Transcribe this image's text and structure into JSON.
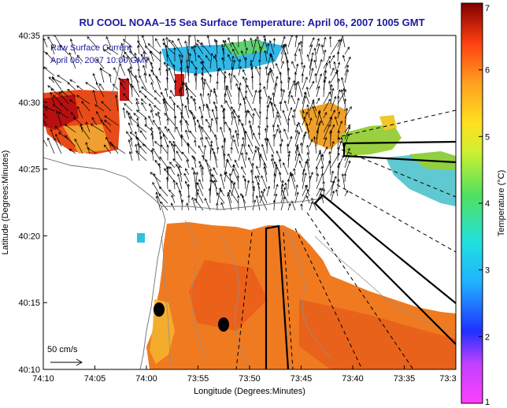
{
  "chart_data": {
    "type": "heatmap",
    "title": "RU COOL  NOAA–15  Sea Surface Temperature:  April 06, 2007 1005 GMT",
    "xlabel": "Longitude (Degrees:Minutes)",
    "ylabel": "Latitude (Degrees:Minutes)",
    "colorbar_label": "Temperature (°C)",
    "x_ticks": [
      "74:10",
      "74:05",
      "74:00",
      "73:55",
      "73:50",
      "73:45",
      "73:40",
      "73:35",
      "73:3"
    ],
    "y_ticks": [
      "40:35",
      "40:30",
      "40:25",
      "40:20",
      "40:15",
      "40:10"
    ],
    "colorbar_ticks": [
      "7",
      "6",
      "5",
      "4",
      "3",
      "2",
      "1"
    ],
    "colorbar_range": [
      1,
      7
    ],
    "annotation_line1": "Raw Surface Current",
    "annotation_line2": "April 06, 2007 10:00 GMT",
    "scale_label": "50 cm/s",
    "colors": {
      "title": "#1a1aa0",
      "water_warm": "#f07020",
      "water_hot": "#c01010",
      "water_cool": "#f5c030",
      "water_cold": "#30c0e0",
      "land": "#ffffff"
    }
  }
}
